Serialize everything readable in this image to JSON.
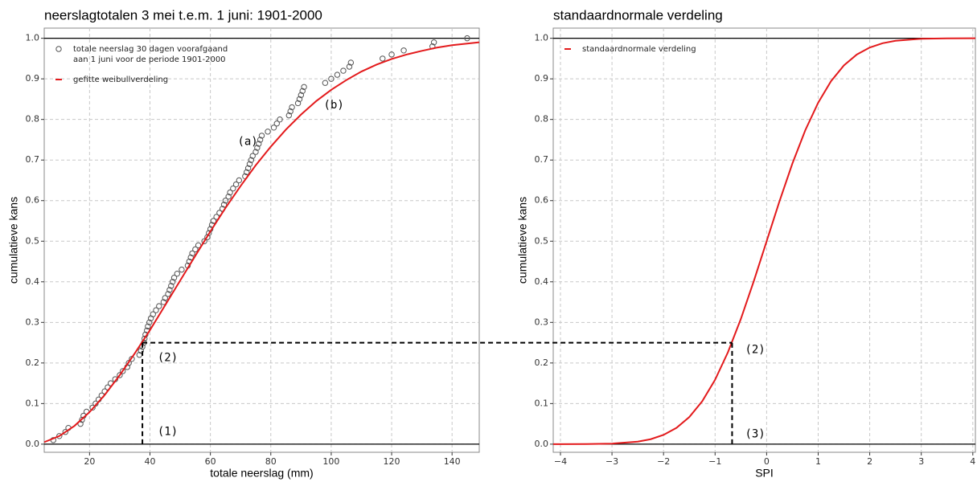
{
  "chart_data": [
    {
      "type": "scatter",
      "title": "neerslagtotalen 3 mei t.e.m. 1 juni: 1901-2000",
      "x_label": "totale neerslag (mm)",
      "y_label": "cumulatieve kans",
      "xlim": [
        5,
        149
      ],
      "ylim": [
        -0.02,
        1.025
      ],
      "xticks": [
        20,
        40,
        60,
        80,
        100,
        120,
        140
      ],
      "yticks": [
        {
          "value": 0,
          "label": "0.0"
        },
        0.1,
        0.2,
        0.3,
        0.4,
        0.5,
        0.6,
        0.7,
        0.8,
        0.9,
        {
          "value": 1,
          "label": "1.0"
        }
      ],
      "grid": true,
      "hlines": [
        0,
        1
      ],
      "legend": "top-left",
      "series": [
        {
          "name": "totale neerslag 30 dagen voorafgaand\naan 1 juni voor de periode 1901-2000",
          "type": "scatter",
          "color": "#555555",
          "x": [
            8,
            10,
            12,
            13,
            17,
            17.5,
            18,
            19,
            21,
            22,
            23,
            24,
            25,
            26,
            27,
            28.5,
            30,
            31,
            32.5,
            33,
            34,
            36.5,
            37,
            37.5,
            38,
            38.2,
            38.5,
            39,
            39.3,
            39.8,
            40.3,
            41,
            42,
            43,
            44.5,
            45,
            46,
            46.5,
            47,
            47.5,
            48,
            49,
            50.5,
            52.5,
            53,
            53.5,
            54,
            55,
            56,
            58,
            59,
            59.5,
            60,
            60.5,
            61,
            62,
            63,
            64,
            64.5,
            65,
            66,
            66.5,
            67.5,
            68.5,
            69.5,
            71.5,
            72,
            72.5,
            73,
            73.5,
            74,
            75,
            75.5,
            76,
            76.5,
            77,
            79,
            81,
            82,
            83,
            86,
            86.5,
            87,
            89,
            89.5,
            90,
            90.5,
            91,
            98,
            100,
            102,
            104,
            106,
            106.5,
            117,
            120,
            124,
            133.5,
            134,
            145
          ],
          "values": [
            0.01,
            0.02,
            0.03,
            0.04,
            0.05,
            0.06,
            0.07,
            0.08,
            0.09,
            0.1,
            0.11,
            0.12,
            0.13,
            0.14,
            0.15,
            0.16,
            0.17,
            0.18,
            0.19,
            0.2,
            0.21,
            0.22,
            0.23,
            0.24,
            0.25,
            0.26,
            0.27,
            0.28,
            0.29,
            0.3,
            0.31,
            0.32,
            0.33,
            0.34,
            0.35,
            0.36,
            0.37,
            0.38,
            0.39,
            0.4,
            0.41,
            0.42,
            0.43,
            0.44,
            0.45,
            0.46,
            0.47,
            0.48,
            0.49,
            0.5,
            0.51,
            0.52,
            0.53,
            0.54,
            0.55,
            0.56,
            0.57,
            0.58,
            0.59,
            0.6,
            0.61,
            0.62,
            0.63,
            0.64,
            0.65,
            0.66,
            0.67,
            0.68,
            0.69,
            0.7,
            0.71,
            0.72,
            0.73,
            0.74,
            0.75,
            0.76,
            0.77,
            0.78,
            0.79,
            0.8,
            0.81,
            0.82,
            0.83,
            0.84,
            0.85,
            0.86,
            0.87,
            0.88,
            0.89,
            0.9,
            0.91,
            0.92,
            0.93,
            0.94,
            0.95,
            0.96,
            0.97,
            0.98,
            0.99,
            1
          ]
        },
        {
          "name": "gefitte weibullverdeling",
          "type": "line",
          "color": "#e31a1c",
          "x": [
            5,
            10,
            15,
            20,
            25,
            30,
            35,
            40,
            45,
            50,
            55,
            60,
            65,
            70,
            75,
            80,
            85,
            90,
            95,
            100,
            105,
            110,
            115,
            120,
            125,
            130,
            135,
            140,
            145,
            149
          ],
          "values": [
            0.005,
            0.02,
            0.045,
            0.079,
            0.121,
            0.17,
            0.224,
            0.281,
            0.342,
            0.403,
            0.464,
            0.524,
            0.582,
            0.636,
            0.687,
            0.733,
            0.775,
            0.812,
            0.845,
            0.873,
            0.897,
            0.918,
            0.935,
            0.949,
            0.96,
            0.969,
            0.977,
            0.983,
            0.987,
            0.99
          ]
        }
      ],
      "guide": {
        "x": 37.5,
        "y": 0.25
      },
      "annotations": [
        {
          "text": "(a)",
          "x": 69,
          "y": 0.745
        },
        {
          "text": "(b)",
          "x": 97.5,
          "y": 0.835
        },
        {
          "text": "(2)",
          "x": 42.5,
          "y": 0.213
        },
        {
          "text": "(1)",
          "x": 42.5,
          "y": 0.03
        }
      ]
    },
    {
      "type": "line",
      "title": "standaardnormale verdeling",
      "x_label": "SPI",
      "y_label": "cumulatieve kans",
      "xlim": [
        -4.14,
        4.05
      ],
      "ylim": [
        -0.02,
        1.025
      ],
      "xticks": [
        {
          "value": -4,
          "label": "−4"
        },
        {
          "value": -3,
          "label": "−3"
        },
        {
          "value": -2,
          "label": "−2"
        },
        {
          "value": -1,
          "label": "−1"
        },
        0,
        1,
        2,
        3,
        4
      ],
      "yticks": [
        {
          "value": 0,
          "label": "0.0"
        },
        0.1,
        0.2,
        0.3,
        0.4,
        0.5,
        0.6,
        0.7,
        0.8,
        0.9,
        {
          "value": 1,
          "label": "1.0"
        }
      ],
      "grid": true,
      "hlines": [
        0,
        1
      ],
      "legend": "top-left",
      "series": [
        {
          "name": "standaardnormale verdeling",
          "type": "line",
          "color": "#e31a1c",
          "x": [
            -4.14,
            -4,
            -3.5,
            -3,
            -2.5,
            -2.25,
            -2,
            -1.75,
            -1.5,
            -1.25,
            -1,
            -0.75,
            -0.5,
            -0.25,
            0,
            0.25,
            0.5,
            0.75,
            1,
            1.25,
            1.5,
            1.75,
            2,
            2.25,
            2.5,
            3,
            3.5,
            4,
            4.05
          ],
          "values": [
            0,
            3e-05,
            0.0002,
            0.0013,
            0.0062,
            0.0122,
            0.0228,
            0.0401,
            0.0668,
            0.1056,
            0.1587,
            0.2266,
            0.3085,
            0.4013,
            0.5,
            0.5987,
            0.6915,
            0.7734,
            0.8413,
            0.8944,
            0.9332,
            0.9599,
            0.9772,
            0.9878,
            0.9938,
            0.9987,
            0.9998,
            1,
            1
          ]
        }
      ],
      "guide": {
        "x": -0.67,
        "y": 0.25
      },
      "annotations": [
        {
          "text": "(2)",
          "x": -0.42,
          "y": 0.232
        },
        {
          "text": "(3)",
          "x": -0.42,
          "y": 0.025
        }
      ]
    }
  ]
}
